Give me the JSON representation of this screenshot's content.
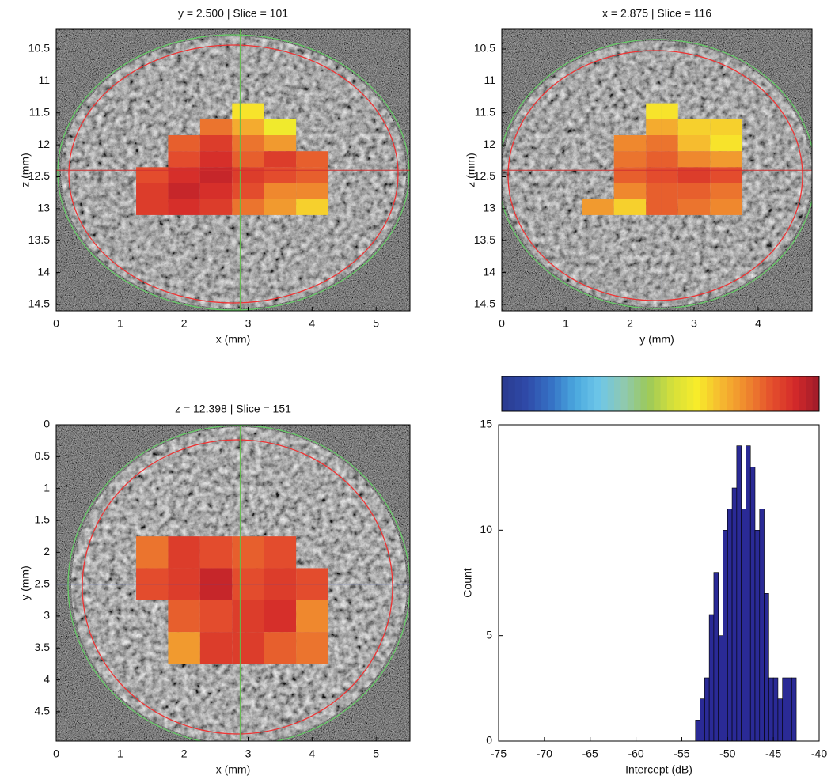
{
  "chart_data": [
    {
      "type": "heatmap",
      "title": "y = 2.500 | Slice = 101",
      "xlabel": "x (mm)",
      "ylabel": "z (mm)",
      "xlim": [
        0,
        5.53
      ],
      "ylim": [
        14.6,
        10.19
      ],
      "xticks": [
        0,
        1,
        2,
        3,
        4,
        5
      ],
      "yticks": [
        10.5,
        11,
        11.5,
        12,
        12.5,
        13,
        13.5,
        14,
        14.5
      ],
      "x_edges": [
        1.25,
        1.75,
        2.25,
        2.75,
        3.25,
        3.75,
        4.25
      ],
      "y_edges": [
        11.35,
        11.6,
        11.85,
        12.1,
        12.35,
        12.6,
        12.85,
        13.1
      ],
      "values": [
        [
          null,
          null,
          null,
          -53,
          null,
          null
        ],
        [
          null,
          null,
          -47,
          -50,
          -54,
          null
        ],
        [
          null,
          -46,
          -44,
          -47,
          -49,
          null
        ],
        [
          null,
          -45,
          -43,
          -46,
          -44,
          -46
        ],
        [
          -45,
          -43,
          -42,
          -44,
          -45,
          -46
        ],
        [
          -44,
          -42,
          -43,
          -45,
          -48,
          -48
        ],
        [
          -44,
          -43,
          -44,
          -47,
          -49,
          -52
        ]
      ],
      "crosshair": {
        "x": 2.875,
        "y": 12.398,
        "x_color": "#5fbf4a",
        "y_color": "#d03030"
      }
    },
    {
      "type": "heatmap",
      "title": "x = 2.875 | Slice = 116",
      "xlabel": "y (mm)",
      "ylabel": "z (mm)",
      "xlim": [
        0,
        4.84
      ],
      "ylim": [
        14.6,
        10.19
      ],
      "xticks": [
        0,
        1,
        2,
        3,
        4
      ],
      "yticks": [
        10.5,
        11,
        11.5,
        12,
        12.5,
        13,
        13.5,
        14,
        14.5
      ],
      "x_edges": [
        1.25,
        1.75,
        2.25,
        2.75,
        3.25,
        3.75
      ],
      "y_edges": [
        11.35,
        11.6,
        11.85,
        12.1,
        12.35,
        12.6,
        12.85,
        13.1
      ],
      "values": [
        [
          null,
          null,
          -53,
          null,
          null
        ],
        [
          null,
          null,
          -50,
          -52,
          -52
        ],
        [
          null,
          -48,
          -47,
          -51,
          -53
        ],
        [
          null,
          -47,
          -46,
          -48,
          -49
        ],
        [
          null,
          -46,
          -45,
          -44,
          -45
        ],
        [
          null,
          -48,
          -46,
          -46,
          -47
        ],
        [
          -49,
          -52,
          -46,
          -47,
          -48
        ]
      ],
      "crosshair": {
        "x": 2.5,
        "y": 12.398,
        "x_color": "#3050c0",
        "y_color": "#d03030"
      }
    },
    {
      "type": "heatmap",
      "title": "z = 12.398 | Slice = 151",
      "xlabel": "x (mm)",
      "ylabel": "y (mm)",
      "xlim": [
        0,
        5.53
      ],
      "ylim": [
        4.96,
        0
      ],
      "xticks": [
        0,
        1,
        2,
        3,
        4,
        5
      ],
      "yticks": [
        0,
        0.5,
        1,
        1.5,
        2,
        2.5,
        3,
        3.5,
        4,
        4.5
      ],
      "x_edges": [
        1.25,
        1.75,
        2.25,
        2.75,
        3.25,
        3.75,
        4.25
      ],
      "y_edges": [
        1.75,
        2.25,
        2.75,
        3.25,
        3.75
      ],
      "values": [
        [
          -47,
          -44,
          -45,
          -46,
          -45,
          null
        ],
        [
          -45,
          -44,
          -42,
          -45,
          -44,
          -45
        ],
        [
          null,
          -46,
          -45,
          -44,
          -43,
          -48
        ],
        [
          null,
          -49,
          -44,
          -44,
          -46,
          -47
        ]
      ],
      "crosshair": {
        "x": 2.875,
        "y": 2.5,
        "x_color": "#5fbf4a",
        "y_color": "#3050c0"
      }
    },
    {
      "type": "colorbar",
      "clim": [
        -75,
        -40
      ],
      "colormap": [
        "#2a3a8e",
        "#2f4aa8",
        "#3570c4",
        "#4aa8de",
        "#6ec6e8",
        "#8fc9b0",
        "#9bc95a",
        "#d6e03a",
        "#f7ec2a",
        "#f6b830",
        "#ef8a2e",
        "#e5522d",
        "#d42a2a",
        "#9e1b2a"
      ]
    },
    {
      "type": "histogram",
      "xlabel": "Intercept (dB)",
      "ylabel": "Count",
      "color": "#2a2a96",
      "xlim": [
        -75,
        -40
      ],
      "ylim": [
        0,
        15
      ],
      "xticks": [
        -75,
        -70,
        -65,
        -60,
        -55,
        -50,
        -45,
        -40
      ],
      "yticks": [
        0,
        5,
        10,
        15
      ],
      "bins": [
        -53.5,
        -53,
        -52.5,
        -52,
        -51.5,
        -51,
        -50.5,
        -50,
        -49.5,
        -49,
        -48.5,
        -48,
        -47.5,
        -47,
        -46.5,
        -46,
        -45.5,
        -45,
        -44.5,
        -44,
        -43.5,
        -43,
        -42.5
      ],
      "counts": [
        1,
        2,
        3,
        6,
        8,
        5,
        10,
        11,
        12,
        14,
        11,
        14,
        13,
        10,
        11,
        7,
        3,
        3,
        2,
        3,
        3,
        3
      ]
    }
  ]
}
